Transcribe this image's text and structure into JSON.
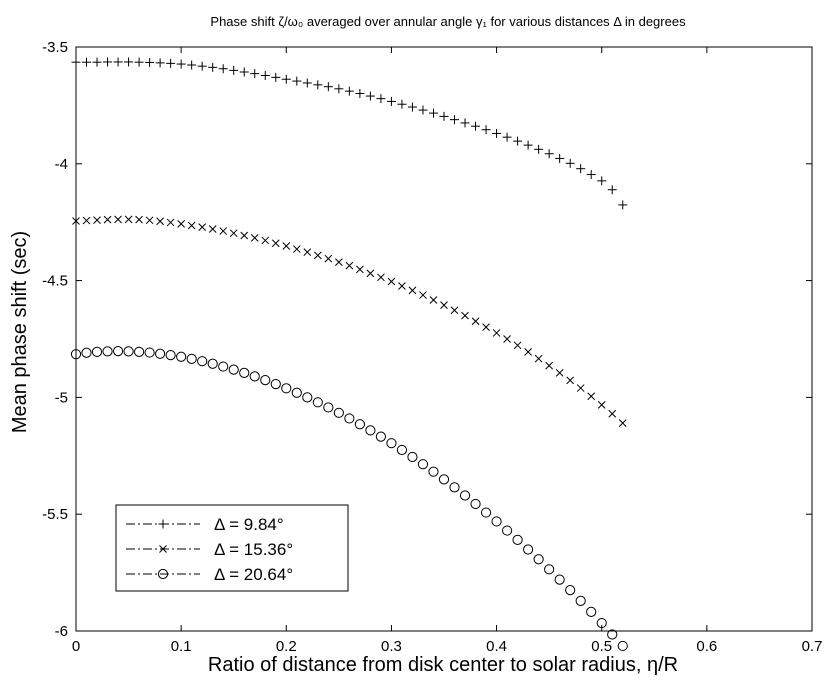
{
  "chart_data": {
    "type": "scatter",
    "title": "Phase shift ζ/ω₀ averaged over annular angle γ₁ for various distances Δ in degrees",
    "xlabel": "Ratio of distance from disk center to solar radius, η/R",
    "ylabel": "Mean phase shift (sec)",
    "xlim": [
      0,
      0.7
    ],
    "ylim": [
      -6,
      -3.5
    ],
    "x_ticks": [
      "0",
      "0.1",
      "0.2",
      "0.3",
      "0.4",
      "0.5",
      "0.6",
      "0.7"
    ],
    "y_ticks": [
      "-3.5",
      "-4",
      "-4.5",
      "-5",
      "-5.5",
      "-6"
    ],
    "legend_position": "bottom-left",
    "x": [
      0,
      0.01,
      0.02,
      0.03,
      0.04,
      0.05,
      0.06,
      0.07,
      0.08,
      0.09,
      0.1,
      0.11,
      0.12,
      0.13,
      0.14,
      0.15,
      0.16,
      0.17,
      0.18,
      0.19,
      0.2,
      0.21,
      0.22,
      0.23,
      0.24,
      0.25,
      0.26,
      0.27,
      0.28,
      0.29,
      0.3,
      0.31,
      0.32,
      0.33,
      0.34,
      0.35,
      0.36,
      0.37,
      0.38,
      0.39,
      0.4,
      0.41,
      0.42,
      0.43,
      0.44,
      0.45,
      0.46,
      0.47,
      0.48,
      0.49,
      0.5,
      0.51,
      0.52
    ],
    "series": [
      {
        "name": "Δ  = 9.84°",
        "marker": "plus",
        "values": [
          -3.565,
          -3.565,
          -3.565,
          -3.564,
          -3.564,
          -3.564,
          -3.565,
          -3.566,
          -3.568,
          -3.57,
          -3.573,
          -3.577,
          -3.582,
          -3.587,
          -3.593,
          -3.6,
          -3.607,
          -3.614,
          -3.622,
          -3.63,
          -3.638,
          -3.646,
          -3.654,
          -3.662,
          -3.67,
          -3.679,
          -3.689,
          -3.699,
          -3.71,
          -3.721,
          -3.733,
          -3.745,
          -3.757,
          -3.77,
          -3.783,
          -3.797,
          -3.811,
          -3.825,
          -3.839,
          -3.854,
          -3.87,
          -3.886,
          -3.903,
          -3.92,
          -3.938,
          -3.957,
          -3.977,
          -3.998,
          -4.021,
          -4.046,
          -4.073,
          -4.111,
          -4.176
        ]
      },
      {
        "name": "Δ  = 15.36°",
        "marker": "x",
        "values": [
          -4.245,
          -4.243,
          -4.241,
          -4.239,
          -4.238,
          -4.238,
          -4.239,
          -4.242,
          -4.246,
          -4.251,
          -4.257,
          -4.264,
          -4.271,
          -4.279,
          -4.288,
          -4.297,
          -4.307,
          -4.317,
          -4.328,
          -4.34,
          -4.352,
          -4.365,
          -4.378,
          -4.392,
          -4.406,
          -4.421,
          -4.436,
          -4.452,
          -4.469,
          -4.486,
          -4.504,
          -4.523,
          -4.542,
          -4.562,
          -4.583,
          -4.605,
          -4.627,
          -4.65,
          -4.674,
          -4.699,
          -4.724,
          -4.75,
          -4.777,
          -4.805,
          -4.834,
          -4.864,
          -4.895,
          -4.927,
          -4.96,
          -4.995,
          -5.032,
          -5.07,
          -5.11
        ]
      },
      {
        "name": "Δ = 20.64°",
        "marker": "circle",
        "values": [
          -4.815,
          -4.809,
          -4.805,
          -4.803,
          -4.802,
          -4.803,
          -4.805,
          -4.808,
          -4.813,
          -4.819,
          -4.826,
          -4.835,
          -4.845,
          -4.856,
          -4.868,
          -4.881,
          -4.895,
          -4.91,
          -4.926,
          -4.943,
          -4.961,
          -4.98,
          -5.0,
          -5.021,
          -5.043,
          -5.066,
          -5.09,
          -5.115,
          -5.141,
          -5.168,
          -5.196,
          -5.225,
          -5.255,
          -5.286,
          -5.318,
          -5.351,
          -5.385,
          -5.42,
          -5.456,
          -5.493,
          -5.531,
          -5.57,
          -5.61,
          -5.651,
          -5.693,
          -5.736,
          -5.78,
          -5.825,
          -5.871,
          -5.918,
          -5.966,
          -6.015,
          -6.064
        ]
      }
    ]
  }
}
